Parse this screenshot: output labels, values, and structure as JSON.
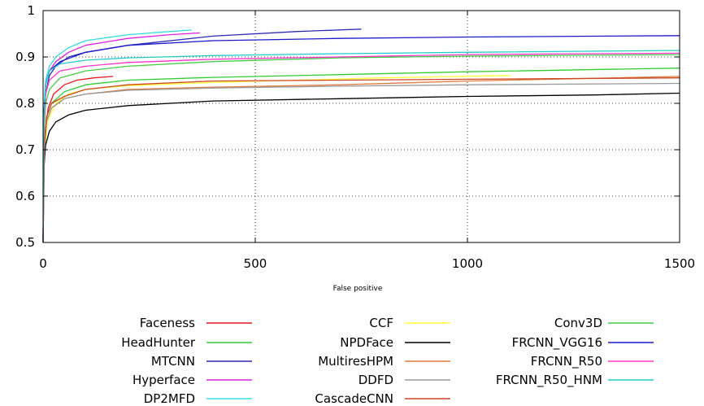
{
  "chart_data": {
    "type": "line",
    "title": "",
    "xlabel": "False positive",
    "ylabel": "",
    "xlim": [
      0,
      1500
    ],
    "ylim": [
      0.5,
      1
    ],
    "xticks": [
      "0",
      "500",
      "1000",
      "1500"
    ],
    "yticks": [
      "0.5",
      "0.6",
      "0.7",
      "0.8",
      "0.9",
      "1"
    ],
    "grid": true,
    "legend_position": "bottom",
    "series": [
      {
        "name": "Faceness",
        "color": "#e41a1c",
        "x": [
          0,
          2,
          6,
          12,
          25,
          50,
          80,
          120,
          165
        ],
        "y": [
          0.5,
          0.68,
          0.75,
          0.79,
          0.82,
          0.84,
          0.85,
          0.855,
          0.858
        ]
      },
      {
        "name": "HeadHunter",
        "color": "#33cc33",
        "x": [
          0,
          3,
          8,
          20,
          50,
          100,
          200,
          400,
          700,
          1000,
          1500
        ],
        "y": [
          0.5,
          0.7,
          0.77,
          0.8,
          0.825,
          0.84,
          0.85,
          0.856,
          0.862,
          0.868,
          0.876
        ]
      },
      {
        "name": "MTCNN",
        "color": "#2b2bb3",
        "x": [
          0,
          2,
          6,
          15,
          30,
          60,
          100,
          200,
          400,
          600,
          750
        ],
        "y": [
          0.5,
          0.74,
          0.82,
          0.86,
          0.88,
          0.9,
          0.91,
          0.925,
          0.945,
          0.955,
          0.96
        ]
      },
      {
        "name": "Hyperface",
        "color": "#e020e0",
        "x": [
          0,
          2,
          6,
          15,
          30,
          60,
          100,
          200,
          300,
          370
        ],
        "y": [
          0.5,
          0.76,
          0.84,
          0.87,
          0.89,
          0.91,
          0.925,
          0.94,
          0.948,
          0.952
        ]
      },
      {
        "name": "DP2MFD",
        "color": "#33dddd",
        "x": [
          0,
          2,
          6,
          15,
          30,
          60,
          100,
          200,
          300,
          350
        ],
        "y": [
          0.5,
          0.77,
          0.85,
          0.88,
          0.9,
          0.92,
          0.935,
          0.948,
          0.955,
          0.958
        ]
      },
      {
        "name": "CCF",
        "color": "#ffff33",
        "x": [
          0,
          3,
          10,
          30,
          60,
          100,
          200,
          400,
          600,
          800,
          1100
        ],
        "y": [
          0.5,
          0.68,
          0.76,
          0.8,
          0.82,
          0.83,
          0.838,
          0.845,
          0.85,
          0.855,
          0.86
        ]
      },
      {
        "name": "NPDFace",
        "color": "#000000",
        "x": [
          0,
          2,
          6,
          15,
          30,
          60,
          100,
          200,
          400,
          700,
          1000,
          1300,
          1500
        ],
        "y": [
          0.5,
          0.66,
          0.71,
          0.74,
          0.76,
          0.775,
          0.785,
          0.795,
          0.805,
          0.81,
          0.815,
          0.818,
          0.822
        ]
      },
      {
        "name": "MultiresHPM",
        "color": "#e07b39",
        "x": [
          0,
          3,
          8,
          20,
          50,
          100,
          200,
          400,
          700,
          1000,
          1500
        ],
        "y": [
          0.5,
          0.7,
          0.76,
          0.79,
          0.81,
          0.82,
          0.83,
          0.835,
          0.84,
          0.848,
          0.858
        ]
      },
      {
        "name": "DDFD",
        "color": "#999999",
        "x": [
          0,
          3,
          8,
          20,
          50,
          100,
          200,
          400,
          700,
          1000,
          1500
        ],
        "y": [
          0.5,
          0.7,
          0.76,
          0.79,
          0.81,
          0.82,
          0.828,
          0.833,
          0.837,
          0.84,
          0.843
        ]
      },
      {
        "name": "CascadeCNN",
        "color": "#cc4422",
        "x": [
          0,
          3,
          8,
          20,
          50,
          100,
          200,
          400,
          700,
          1000,
          1500
        ],
        "y": [
          0.5,
          0.71,
          0.77,
          0.8,
          0.815,
          0.83,
          0.84,
          0.848,
          0.85,
          0.852,
          0.855
        ]
      },
      {
        "name": "Conv3D",
        "color": "#44cc44",
        "x": [
          0,
          2,
          6,
          15,
          40,
          100,
          200,
          400,
          700,
          1000,
          1500
        ],
        "y": [
          0.5,
          0.74,
          0.8,
          0.83,
          0.855,
          0.87,
          0.88,
          0.89,
          0.898,
          0.902,
          0.905
        ]
      },
      {
        "name": "FRCNN_VGG16",
        "color": "#1a1acc",
        "x": [
          0,
          2,
          6,
          15,
          40,
          100,
          200,
          400,
          700,
          1000,
          1500
        ],
        "y": [
          0.5,
          0.78,
          0.84,
          0.87,
          0.89,
          0.91,
          0.925,
          0.935,
          0.94,
          0.943,
          0.946
        ]
      },
      {
        "name": "FRCNN_R50",
        "color": "#ff33cc",
        "x": [
          0,
          2,
          6,
          15,
          40,
          100,
          200,
          400,
          700,
          1000,
          1500
        ],
        "y": [
          0.5,
          0.75,
          0.82,
          0.85,
          0.87,
          0.88,
          0.888,
          0.895,
          0.9,
          0.905,
          0.908
        ]
      },
      {
        "name": "FRCNN_R50_HNM",
        "color": "#22cccc",
        "x": [
          0,
          2,
          6,
          15,
          40,
          100,
          200,
          400,
          700,
          1000,
          1500
        ],
        "y": [
          0.5,
          0.77,
          0.84,
          0.87,
          0.885,
          0.893,
          0.898,
          0.903,
          0.907,
          0.91,
          0.914
        ]
      }
    ]
  }
}
